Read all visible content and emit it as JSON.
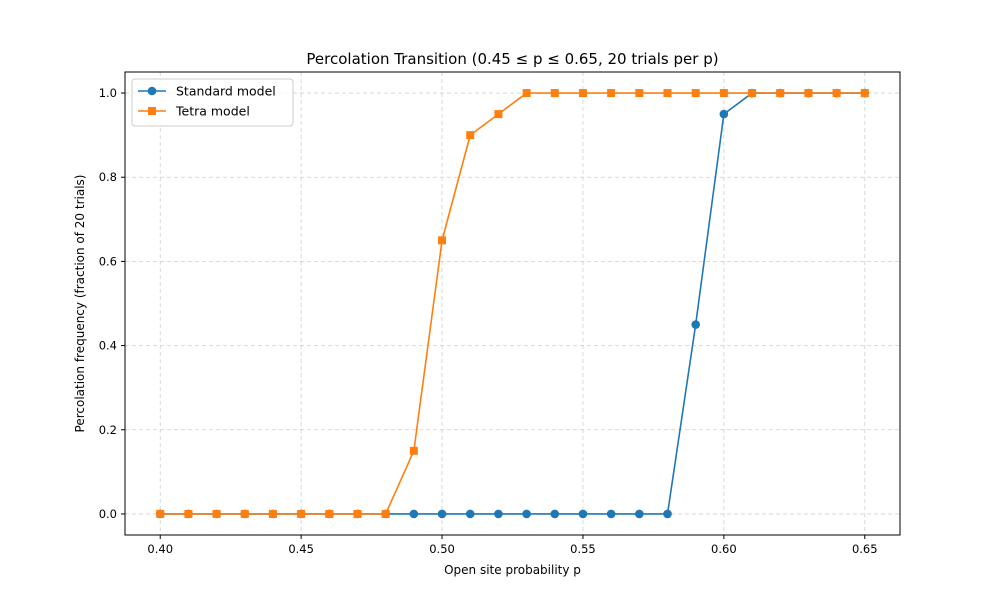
{
  "chart_data": {
    "type": "line",
    "title": "Percolation Transition (0.45 ≤ p ≤ 0.65, 20 trials per p)",
    "xlabel": "Open site probability p",
    "ylabel": "Percolation frequency (fraction of 20 trials)",
    "xlim": [
      0.3875,
      0.6625
    ],
    "ylim": [
      -0.05,
      1.05
    ],
    "xticks": [
      0.4,
      0.45,
      0.5,
      0.55,
      0.6,
      0.65
    ],
    "xtick_labels": [
      "0.40",
      "0.45",
      "0.50",
      "0.55",
      "0.60",
      "0.65"
    ],
    "yticks": [
      0.0,
      0.2,
      0.4,
      0.6,
      0.8,
      1.0
    ],
    "ytick_labels": [
      "0.0",
      "0.2",
      "0.4",
      "0.6",
      "0.8",
      "1.0"
    ],
    "grid": true,
    "legend_position": "top-left",
    "x": [
      0.4,
      0.41,
      0.42,
      0.43,
      0.44,
      0.45,
      0.46,
      0.47,
      0.48,
      0.49,
      0.5,
      0.51,
      0.52,
      0.53,
      0.54,
      0.55,
      0.56,
      0.57,
      0.58,
      0.59,
      0.6,
      0.61,
      0.62,
      0.63,
      0.64,
      0.65
    ],
    "series": [
      {
        "name": "Standard model",
        "color": "#1f77b4",
        "marker": "circle",
        "values": [
          0,
          0,
          0,
          0,
          0,
          0,
          0,
          0,
          0,
          0,
          0,
          0,
          0,
          0,
          0,
          0,
          0,
          0,
          0,
          0.45,
          0.95,
          1.0,
          1.0,
          1.0,
          1.0,
          1.0
        ]
      },
      {
        "name": "Tetra model",
        "color": "#ff7f0e",
        "marker": "square",
        "values": [
          0,
          0,
          0,
          0,
          0,
          0,
          0,
          0,
          0,
          0.15,
          0.65,
          0.9,
          0.95,
          1.0,
          1.0,
          1.0,
          1.0,
          1.0,
          1.0,
          1.0,
          1.0,
          1.0,
          1.0,
          1.0,
          1.0,
          1.0
        ]
      }
    ]
  }
}
